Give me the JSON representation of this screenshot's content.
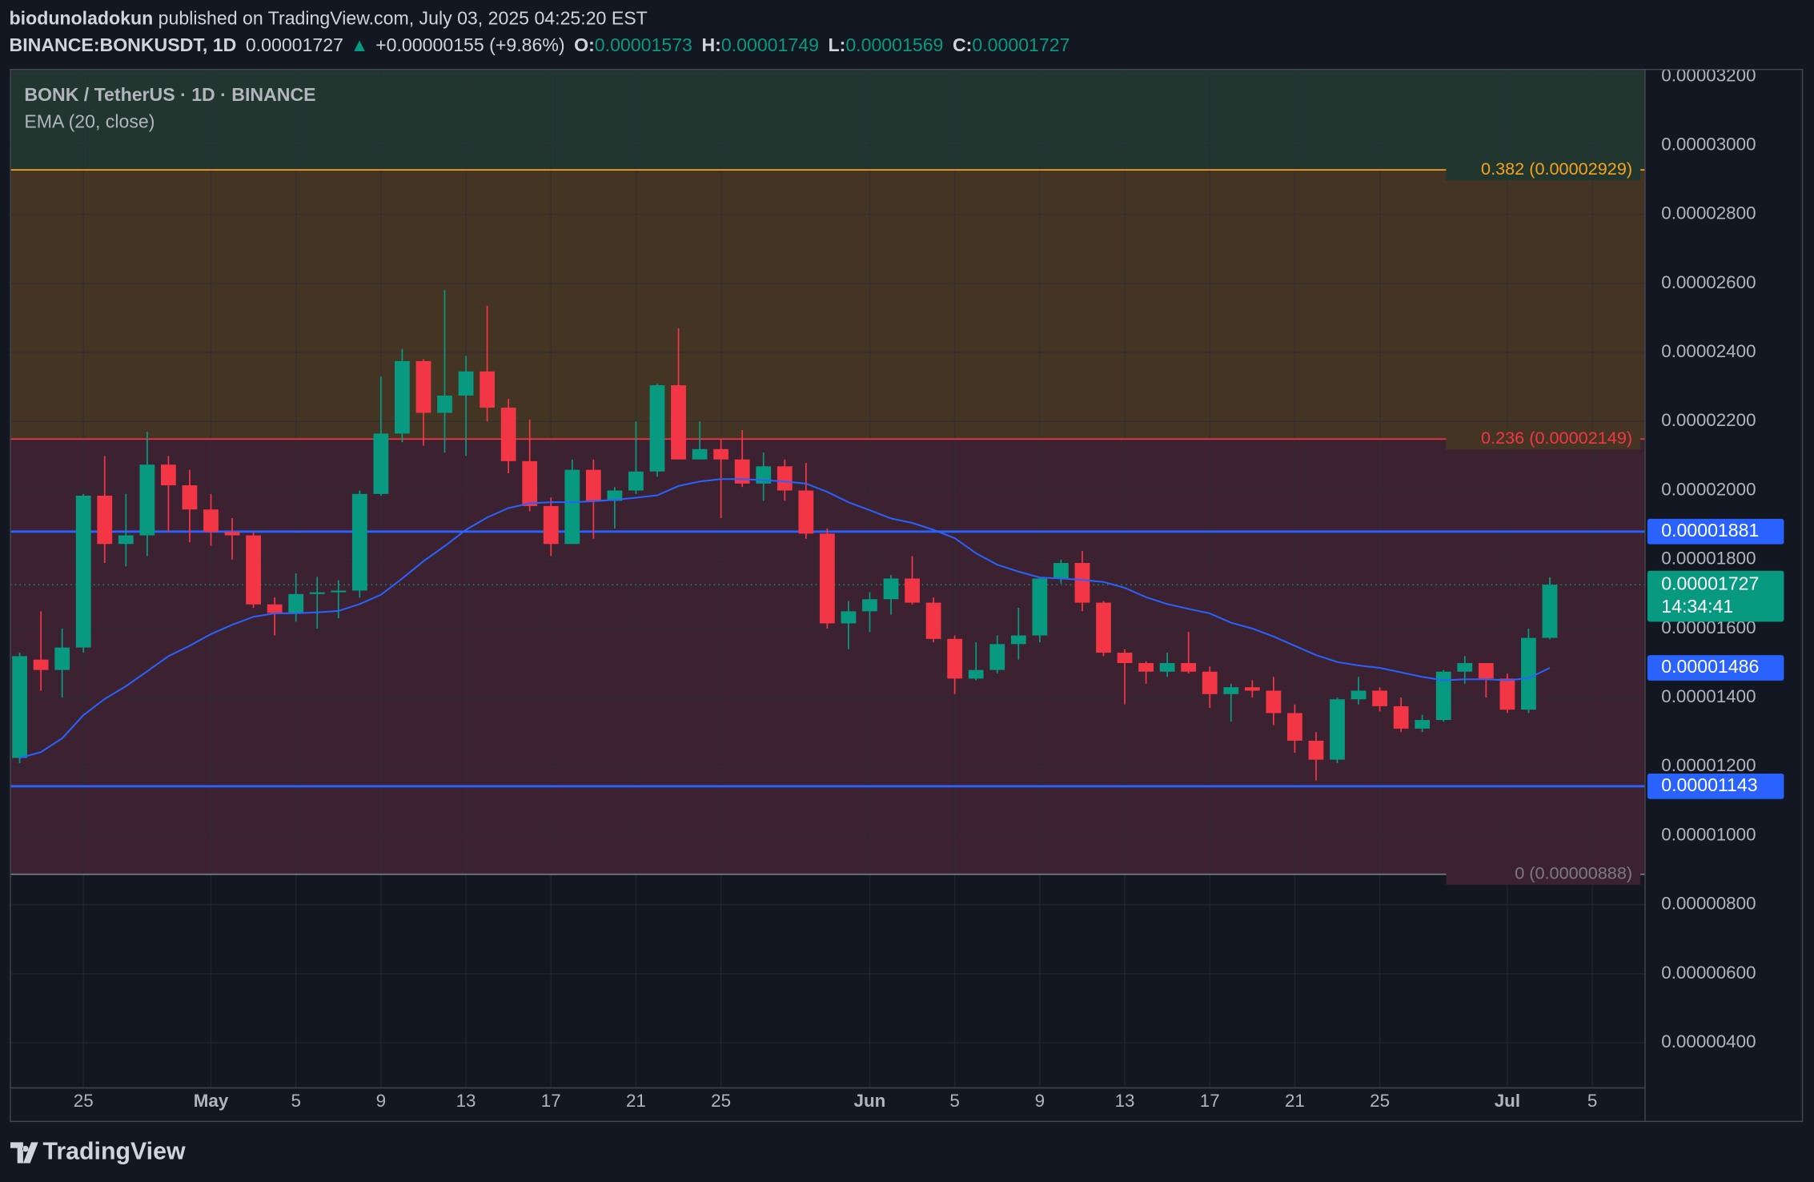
{
  "header": {
    "author": "biodunoladokun",
    "published": " published on TradingView.com, July 03, 2025 04:25:20 EST",
    "symbol": "BINANCE:BONKUSDT, 1D",
    "last": "0.00001727",
    "arrow": "▲",
    "change": "+0.00000155 (+9.86%)",
    "ohlc": [
      {
        "key": "O:",
        "value": "0.00001573"
      },
      {
        "key": "H:",
        "value": "0.00001749"
      },
      {
        "key": "L:",
        "value": "0.00001569"
      },
      {
        "key": "C:",
        "value": "0.00001727"
      }
    ]
  },
  "footer": {
    "brand": "TradingView"
  },
  "chart_data": {
    "type": "candlestick",
    "title": "BONK / TetherUS · 1D · BINANCE",
    "up_color": "#089981",
    "down_color": "#f23645",
    "x": [
      "2025-04-22",
      "2025-04-23",
      "2025-04-24",
      "2025-04-25",
      "2025-04-26",
      "2025-04-27",
      "2025-04-28",
      "2025-04-29",
      "2025-04-30",
      "2025-05-01",
      "2025-05-02",
      "2025-05-03",
      "2025-05-04",
      "2025-05-05",
      "2025-05-06",
      "2025-05-07",
      "2025-05-08",
      "2025-05-09",
      "2025-05-10",
      "2025-05-11",
      "2025-05-12",
      "2025-05-13",
      "2025-05-14",
      "2025-05-15",
      "2025-05-16",
      "2025-05-17",
      "2025-05-18",
      "2025-05-19",
      "2025-05-20",
      "2025-05-21",
      "2025-05-22",
      "2025-05-23",
      "2025-05-24",
      "2025-05-25",
      "2025-05-26",
      "2025-05-27",
      "2025-05-28",
      "2025-05-29",
      "2025-05-30",
      "2025-05-31",
      "2025-06-01",
      "2025-06-02",
      "2025-06-03",
      "2025-06-04",
      "2025-06-05",
      "2025-06-06",
      "2025-06-07",
      "2025-06-08",
      "2025-06-09",
      "2025-06-10",
      "2025-06-11",
      "2025-06-12",
      "2025-06-13",
      "2025-06-14",
      "2025-06-15",
      "2025-06-16",
      "2025-06-17",
      "2025-06-18",
      "2025-06-19",
      "2025-06-20",
      "2025-06-21",
      "2025-06-22",
      "2025-06-23",
      "2025-06-24",
      "2025-06-25",
      "2025-06-26",
      "2025-06-27",
      "2025-06-28",
      "2025-06-29",
      "2025-06-30",
      "2025-07-01",
      "2025-07-02",
      "2025-07-03"
    ],
    "open": [
      1.225e-05,
      1.51e-05,
      1.48e-05,
      1.545e-05,
      1.985e-05,
      1.845e-05,
      1.87e-05,
      2.075e-05,
      2.015e-05,
      1.945e-05,
      1.88e-05,
      1.87e-05,
      1.67e-05,
      1.645e-05,
      1.7e-05,
      1.705e-05,
      1.71e-05,
      1.99e-05,
      2.165e-05,
      2.375e-05,
      2.225e-05,
      2.275e-05,
      2.345e-05,
      2.24e-05,
      2.085e-05,
      1.955e-05,
      1.845e-05,
      2.06e-05,
      1.97e-05,
      2e-05,
      2.055e-05,
      2.305e-05,
      2.09e-05,
      2.12e-05,
      2.09e-05,
      2.02e-05,
      2.07e-05,
      2e-05,
      1.875e-05,
      1.615e-05,
      1.65e-05,
      1.685e-05,
      1.745e-05,
      1.675e-05,
      1.57e-05,
      1.455e-05,
      1.48e-05,
      1.555e-05,
      1.58e-05,
      1.745e-05,
      1.79e-05,
      1.675e-05,
      1.53e-05,
      1.5e-05,
      1.475e-05,
      1.5e-05,
      1.475e-05,
      1.41e-05,
      1.43e-05,
      1.42e-05,
      1.355e-05,
      1.275e-05,
      1.22e-05,
      1.395e-05,
      1.42e-05,
      1.375e-05,
      1.31e-05,
      1.335e-05,
      1.475e-05,
      1.5e-05,
      1.455e-05,
      1.365e-05,
      1.573e-05
    ],
    "high": [
      1.53e-05,
      1.65e-05,
      1.6e-05,
      1.99e-05,
      2.1e-05,
      1.99e-05,
      2.17e-05,
      2.1e-05,
      2.06e-05,
      1.99e-05,
      1.92e-05,
      1.88e-05,
      1.69e-05,
      1.76e-05,
      1.75e-05,
      1.74e-05,
      2e-05,
      2.33e-05,
      2.41e-05,
      2.38e-05,
      2.58e-05,
      2.39e-05,
      2.535e-05,
      2.265e-05,
      2.205e-05,
      1.98e-05,
      2.09e-05,
      2.09e-05,
      2.01e-05,
      2.2e-05,
      2.31e-05,
      2.47e-05,
      2.2e-05,
      2.15e-05,
      2.175e-05,
      2.11e-05,
      2.09e-05,
      2.08e-05,
      1.89e-05,
      1.68e-05,
      1.705e-05,
      1.755e-05,
      1.81e-05,
      1.69e-05,
      1.58e-05,
      1.56e-05,
      1.58e-05,
      1.66e-05,
      1.75e-05,
      1.8e-05,
      1.825e-05,
      1.68e-05,
      1.54e-05,
      1.505e-05,
      1.53e-05,
      1.59e-05,
      1.49e-05,
      1.44e-05,
      1.45e-05,
      1.46e-05,
      1.38e-05,
      1.3e-05,
      1.4e-05,
      1.46e-05,
      1.43e-05,
      1.4e-05,
      1.35e-05,
      1.48e-05,
      1.52e-05,
      1.5e-05,
      1.47e-05,
      1.6e-05,
      1.749e-05
    ],
    "low": [
      1.21e-05,
      1.42e-05,
      1.4e-05,
      1.53e-05,
      1.79e-05,
      1.78e-05,
      1.81e-05,
      1.88e-05,
      1.85e-05,
      1.84e-05,
      1.8e-05,
      1.66e-05,
      1.58e-05,
      1.62e-05,
      1.6e-05,
      1.63e-05,
      1.69e-05,
      1.985e-05,
      2.14e-05,
      2.13e-05,
      2.11e-05,
      2.1e-05,
      2.2e-05,
      2.05e-05,
      1.94e-05,
      1.81e-05,
      1.845e-05,
      1.86e-05,
      1.89e-05,
      1.99e-05,
      2.04e-05,
      2.09e-05,
      2.09e-05,
      1.92e-05,
      2.01e-05,
      1.97e-05,
      1.97e-05,
      1.86e-05,
      1.6e-05,
      1.54e-05,
      1.59e-05,
      1.64e-05,
      1.67e-05,
      1.56e-05,
      1.41e-05,
      1.45e-05,
      1.47e-05,
      1.51e-05,
      1.56e-05,
      1.73e-05,
      1.65e-05,
      1.52e-05,
      1.38e-05,
      1.44e-05,
      1.46e-05,
      1.47e-05,
      1.37e-05,
      1.33e-05,
      1.4e-05,
      1.32e-05,
      1.24e-05,
      1.16e-05,
      1.21e-05,
      1.38e-05,
      1.36e-05,
      1.3e-05,
      1.3e-05,
      1.33e-05,
      1.44e-05,
      1.4e-05,
      1.355e-05,
      1.355e-05,
      1.569e-05
    ],
    "close": [
      1.52e-05,
      1.48e-05,
      1.545e-05,
      1.985e-05,
      1.845e-05,
      1.87e-05,
      2.075e-05,
      2.015e-05,
      1.945e-05,
      1.88e-05,
      1.87e-05,
      1.67e-05,
      1.645e-05,
      1.7e-05,
      1.705e-05,
      1.71e-05,
      1.99e-05,
      2.165e-05,
      2.375e-05,
      2.225e-05,
      2.275e-05,
      2.345e-05,
      2.24e-05,
      2.085e-05,
      1.955e-05,
      1.845e-05,
      2.06e-05,
      1.97e-05,
      2e-05,
      2.055e-05,
      2.305e-05,
      2.09e-05,
      2.12e-05,
      2.09e-05,
      2.02e-05,
      2.07e-05,
      2e-05,
      1.875e-05,
      1.615e-05,
      1.65e-05,
      1.685e-05,
      1.745e-05,
      1.675e-05,
      1.57e-05,
      1.455e-05,
      1.48e-05,
      1.555e-05,
      1.58e-05,
      1.745e-05,
      1.79e-05,
      1.675e-05,
      1.53e-05,
      1.5e-05,
      1.475e-05,
      1.5e-05,
      1.475e-05,
      1.41e-05,
      1.43e-05,
      1.42e-05,
      1.355e-05,
      1.275e-05,
      1.22e-05,
      1.395e-05,
      1.42e-05,
      1.375e-05,
      1.31e-05,
      1.335e-05,
      1.475e-05,
      1.5e-05,
      1.455e-05,
      1.365e-05,
      1.573e-05,
      1.727e-05
    ],
    "countdown": "14:34:41",
    "ema": {
      "label": "EMA (20, close)",
      "color": "#2962ff",
      "values": [
        1.225e-05,
        1.242e-05,
        1.282e-05,
        1.349e-05,
        1.396e-05,
        1.433e-05,
        1.476e-05,
        1.52e-05,
        1.55e-05,
        1.584e-05,
        1.611e-05,
        1.634e-05,
        1.644e-05,
        1.644e-05,
        1.647e-05,
        1.651e-05,
        1.671e-05,
        1.698e-05,
        1.745e-05,
        1.795e-05,
        1.839e-05,
        1.886e-05,
        1.922e-05,
        1.949e-05,
        1.963e-05,
        1.966e-05,
        1.966e-05,
        1.969e-05,
        1.973e-05,
        1.979e-05,
        1.986e-05,
        2.013e-05,
        2.026e-05,
        2.033e-05,
        2.033e-05,
        2.03e-05,
        2.026e-05,
        2.02e-05,
        1.996e-05,
        1.966e-05,
        1.943e-05,
        1.919e-05,
        1.906e-05,
        1.886e-05,
        1.862e-05,
        1.818e-05,
        1.785e-05,
        1.765e-05,
        1.748e-05,
        1.745e-05,
        1.741e-05,
        1.735e-05,
        1.718e-05,
        1.691e-05,
        1.671e-05,
        1.657e-05,
        1.644e-05,
        1.617e-05,
        1.6e-05,
        1.577e-05,
        1.55e-05,
        1.523e-05,
        1.503e-05,
        1.493e-05,
        1.486e-05,
        1.473e-05,
        1.46e-05,
        1.45e-05,
        1.453e-05,
        1.453e-05,
        1.45e-05,
        1.456e-05,
        1.486e-05
      ]
    },
    "fib_levels": [
      {
        "label": "0.382 (0.00002929)",
        "value": 2.929e-05,
        "color": "#f7a21b",
        "fill": "#20362f"
      },
      {
        "label": "0.236 (0.00002149)",
        "value": 2.149e-05,
        "color": "#f23645",
        "fill": "#443423"
      },
      {
        "label": "0 (0.00000888)",
        "value": 8.88e-06,
        "color": "#787b86",
        "fill": "#3c2130"
      }
    ],
    "hlines": [
      {
        "value": 1.881e-05,
        "color": "#2962ff"
      },
      {
        "value": 1.143e-05,
        "color": "#2962ff"
      }
    ],
    "ylim": [
      2.69e-06,
      3.22e-05
    ],
    "yticks": [
      {
        "value": 4e-06,
        "label": "0.00000400"
      },
      {
        "value": 6e-06,
        "label": "0.00000600"
      },
      {
        "value": 8e-06,
        "label": "0.00000800"
      },
      {
        "value": 1e-05,
        "label": "0.00001000"
      },
      {
        "value": 1.2e-05,
        "label": "0.00001200"
      },
      {
        "value": 1.4e-05,
        "label": "0.00001400"
      },
      {
        "value": 1.6e-05,
        "label": "0.00001600"
      },
      {
        "value": 1.8e-05,
        "label": "0.00001800"
      },
      {
        "value": 2e-05,
        "label": "0.00002000"
      },
      {
        "value": 2.2e-05,
        "label": "0.00002200"
      },
      {
        "value": 2.4e-05,
        "label": "0.00002400"
      },
      {
        "value": 2.6e-05,
        "label": "0.00002600"
      },
      {
        "value": 2.8e-05,
        "label": "0.00002800"
      },
      {
        "value": 3e-05,
        "label": "0.00003000"
      },
      {
        "value": 3.2e-05,
        "label": "0.00003200"
      }
    ],
    "xticks": [
      {
        "value": "2025-04-25",
        "label": "25"
      },
      {
        "value": "2025-05-01",
        "label": "May"
      },
      {
        "value": "2025-05-05",
        "label": "5"
      },
      {
        "value": "2025-05-09",
        "label": "9"
      },
      {
        "value": "2025-05-13",
        "label": "13"
      },
      {
        "value": "2025-05-17",
        "label": "17"
      },
      {
        "value": "2025-05-21",
        "label": "21"
      },
      {
        "value": "2025-05-25",
        "label": "25"
      },
      {
        "value": "2025-06-01",
        "label": "Jun"
      },
      {
        "value": "2025-06-05",
        "label": "5"
      },
      {
        "value": "2025-06-09",
        "label": "9"
      },
      {
        "value": "2025-06-13",
        "label": "13"
      },
      {
        "value": "2025-06-17",
        "label": "17"
      },
      {
        "value": "2025-06-21",
        "label": "21"
      },
      {
        "value": "2025-06-25",
        "label": "25"
      },
      {
        "value": "2025-07-01",
        "label": "Jul"
      },
      {
        "value": "2025-07-05",
        "label": "5"
      }
    ],
    "grid": true
  }
}
